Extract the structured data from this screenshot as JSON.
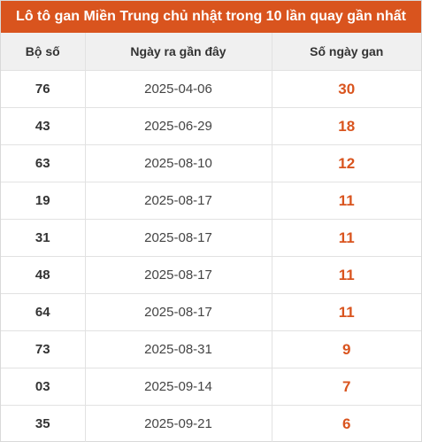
{
  "title": "Lô tô gan Miền Trung chủ nhật trong 10 lần quay gần nhất",
  "colors": {
    "header_bg": "#d9541e",
    "accent_text": "#d9541e"
  },
  "columns": [
    "Bộ số",
    "Ngày ra gần đây",
    "Số ngày gan"
  ],
  "rows": [
    {
      "number": "76",
      "date": "2025-04-06",
      "days": "30"
    },
    {
      "number": "43",
      "date": "2025-06-29",
      "days": "18"
    },
    {
      "number": "63",
      "date": "2025-08-10",
      "days": "12"
    },
    {
      "number": "19",
      "date": "2025-08-17",
      "days": "11"
    },
    {
      "number": "31",
      "date": "2025-08-17",
      "days": "11"
    },
    {
      "number": "48",
      "date": "2025-08-17",
      "days": "11"
    },
    {
      "number": "64",
      "date": "2025-08-17",
      "days": "11"
    },
    {
      "number": "73",
      "date": "2025-08-31",
      "days": "9"
    },
    {
      "number": "03",
      "date": "2025-09-14",
      "days": "7"
    },
    {
      "number": "35",
      "date": "2025-09-21",
      "days": "6"
    }
  ]
}
